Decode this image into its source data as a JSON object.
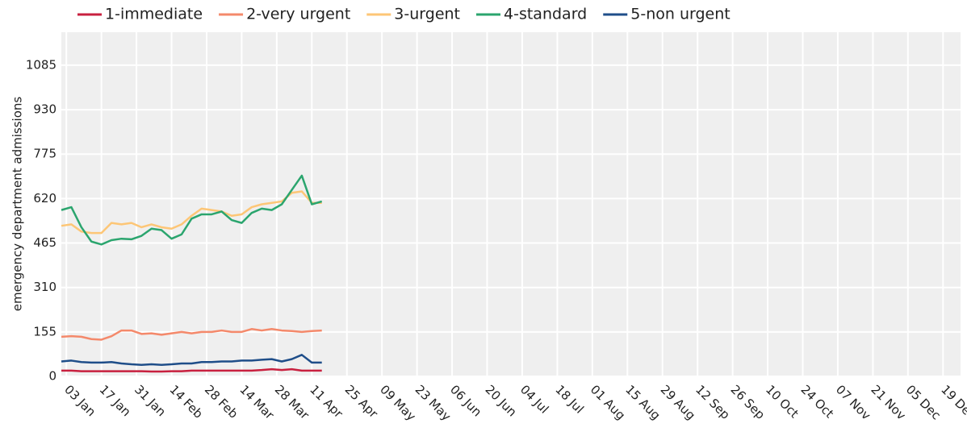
{
  "chart_data": {
    "type": "line",
    "y_axis_label": "emergency department admissions",
    "x": [
      "01 Jan",
      "05 Jan",
      "09 Jan",
      "13 Jan",
      "17 Jan",
      "21 Jan",
      "25 Jan",
      "29 Jan",
      "02 Feb",
      "06 Feb",
      "10 Feb",
      "14 Feb",
      "18 Feb",
      "22 Feb",
      "26 Feb",
      "02 Mar",
      "06 Mar",
      "10 Mar",
      "14 Mar",
      "18 Mar",
      "22 Mar",
      "26 Mar",
      "30 Mar",
      "03 Apr",
      "07 Apr",
      "11 Apr",
      "15 Apr"
    ],
    "series": [
      {
        "name": "1-immediate",
        "color": "#c8203f",
        "values": [
          20,
          20,
          18,
          18,
          18,
          18,
          18,
          18,
          18,
          17,
          17,
          18,
          18,
          20,
          20,
          20,
          20,
          20,
          20,
          20,
          22,
          25,
          22,
          25,
          20,
          20,
          20
        ]
      },
      {
        "name": "2-very urgent",
        "color": "#f4896b",
        "values": [
          138,
          140,
          138,
          130,
          128,
          140,
          160,
          160,
          148,
          150,
          145,
          150,
          155,
          150,
          155,
          155,
          160,
          155,
          155,
          165,
          160,
          165,
          160,
          158,
          155,
          158,
          160
        ]
      },
      {
        "name": "3-urgent",
        "color": "#fdc676",
        "values": [
          525,
          530,
          505,
          500,
          500,
          535,
          530,
          535,
          520,
          530,
          520,
          515,
          530,
          560,
          585,
          580,
          575,
          560,
          565,
          590,
          600,
          605,
          610,
          640,
          645,
          605,
          605
        ]
      },
      {
        "name": "4-standard",
        "color": "#2ba56e",
        "values": [
          580,
          590,
          520,
          470,
          460,
          475,
          480,
          478,
          490,
          515,
          510,
          480,
          495,
          550,
          565,
          565,
          575,
          545,
          535,
          570,
          585,
          580,
          600,
          650,
          700,
          600,
          610
        ]
      },
      {
        "name": "5-non urgent",
        "color": "#1f4e89",
        "values": [
          52,
          55,
          50,
          48,
          48,
          50,
          45,
          42,
          40,
          42,
          40,
          42,
          45,
          45,
          50,
          50,
          52,
          52,
          55,
          55,
          58,
          60,
          52,
          60,
          75,
          48,
          48
        ]
      }
    ],
    "xlim": [
      "01 Jan",
      "26 Dec"
    ],
    "xticks": [
      "03 Jan",
      "17 Jan",
      "31 Jan",
      "14 Feb",
      "28 Feb",
      "14 Mar",
      "28 Mar",
      "11 Apr",
      "25 Apr",
      "09 May",
      "23 May",
      "06 Jun",
      "20 Jun",
      "04 Jul",
      "18 Jul",
      "01 Aug",
      "15 Aug",
      "29 Aug",
      "12 Sep",
      "26 Sep",
      "10 Oct",
      "24 Oct",
      "07 Nov",
      "21 Nov",
      "05 Dec",
      "19 Dec"
    ],
    "ylim": [
      0,
      1200
    ],
    "yticks": [
      0,
      155,
      310,
      465,
      620,
      775,
      930,
      1085
    ],
    "grid": true
  }
}
